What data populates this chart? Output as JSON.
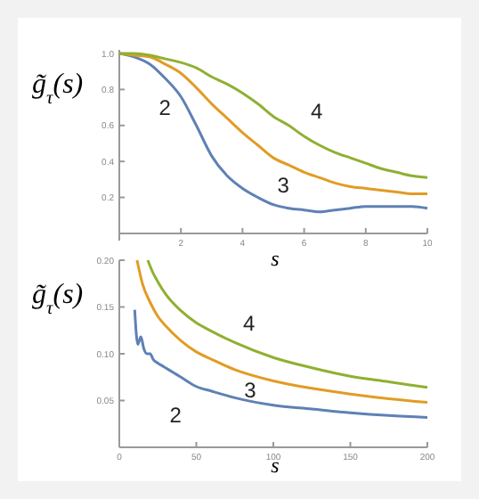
{
  "chart_data": [
    {
      "type": "line",
      "xlabel": "s",
      "ylabel": "g̃$_{τ}$(s)",
      "xlim": [
        0,
        10
      ],
      "ylim": [
        -0.04,
        1.02
      ],
      "xticks": [
        {
          "value": 0,
          "label": null
        },
        2,
        4,
        6,
        8,
        10
      ],
      "yticks": [
        0.2,
        0.4,
        0.6,
        0.8,
        {
          "value": 1,
          "label": "1.0"
        }
      ],
      "grid": false,
      "x": [
        0,
        0.5,
        1,
        1.5,
        2,
        2.5,
        3,
        3.5,
        4,
        4.5,
        5,
        5.5,
        6,
        6.5,
        7,
        7.5,
        8,
        8.5,
        9,
        9.5,
        10
      ],
      "series": [
        {
          "name": "2",
          "color": "#5e81b5",
          "values": [
            1.0,
            0.98,
            0.94,
            0.86,
            0.76,
            0.6,
            0.43,
            0.32,
            0.25,
            0.2,
            0.16,
            0.14,
            0.13,
            0.12,
            0.13,
            0.14,
            0.15,
            0.15,
            0.15,
            0.15,
            0.14
          ]
        },
        {
          "name": "3",
          "color": "#e19c24",
          "values": [
            1.0,
            0.99,
            0.98,
            0.94,
            0.89,
            0.81,
            0.72,
            0.64,
            0.56,
            0.49,
            0.42,
            0.38,
            0.34,
            0.31,
            0.28,
            0.26,
            0.25,
            0.24,
            0.23,
            0.22,
            0.22
          ]
        },
        {
          "name": "4",
          "color": "#8fb032",
          "values": [
            1.0,
            1.0,
            0.99,
            0.97,
            0.95,
            0.92,
            0.87,
            0.83,
            0.78,
            0.72,
            0.65,
            0.6,
            0.54,
            0.49,
            0.45,
            0.42,
            0.39,
            0.36,
            0.34,
            0.32,
            0.31
          ]
        }
      ]
    },
    {
      "type": "line",
      "xlabel": "s",
      "ylabel": "g̃$_{τ}$(s)",
      "xlim": [
        0,
        200
      ],
      "ylim": [
        0,
        0.2
      ],
      "xticks": [
        0,
        50,
        100,
        150,
        200
      ],
      "yticks": [
        0.05,
        {
          "value": 0.1,
          "label": "0.10"
        },
        0.15,
        {
          "value": 0.2,
          "label": "0.20"
        }
      ],
      "grid": false,
      "series": [
        {
          "name": "2",
          "color": "#5e81b5",
          "x": [
            10,
            12,
            14,
            16,
            18,
            20,
            22,
            25,
            28,
            30,
            35,
            40,
            50,
            60,
            75,
            100,
            125,
            150,
            175,
            200
          ],
          "values": [
            0.147,
            0.11,
            0.118,
            0.105,
            0.1,
            0.1,
            0.094,
            0.09,
            0.087,
            0.085,
            0.08,
            0.075,
            0.065,
            0.06,
            0.053,
            0.045,
            0.041,
            0.037,
            0.034,
            0.032
          ]
        },
        {
          "name": "3",
          "color": "#e19c24",
          "x": [
            11.5,
            15,
            20,
            25,
            30,
            40,
            50,
            60,
            75,
            100,
            125,
            150,
            175,
            200
          ],
          "values": [
            0.2,
            0.175,
            0.155,
            0.14,
            0.13,
            0.114,
            0.102,
            0.094,
            0.083,
            0.071,
            0.063,
            0.057,
            0.052,
            0.048
          ]
        },
        {
          "name": "4",
          "color": "#8fb032",
          "x": [
            18.5,
            22,
            25,
            30,
            40,
            50,
            60,
            75,
            100,
            125,
            150,
            175,
            200
          ],
          "values": [
            0.2,
            0.186,
            0.177,
            0.164,
            0.146,
            0.133,
            0.124,
            0.112,
            0.096,
            0.085,
            0.076,
            0.07,
            0.064
          ]
        }
      ]
    }
  ]
}
